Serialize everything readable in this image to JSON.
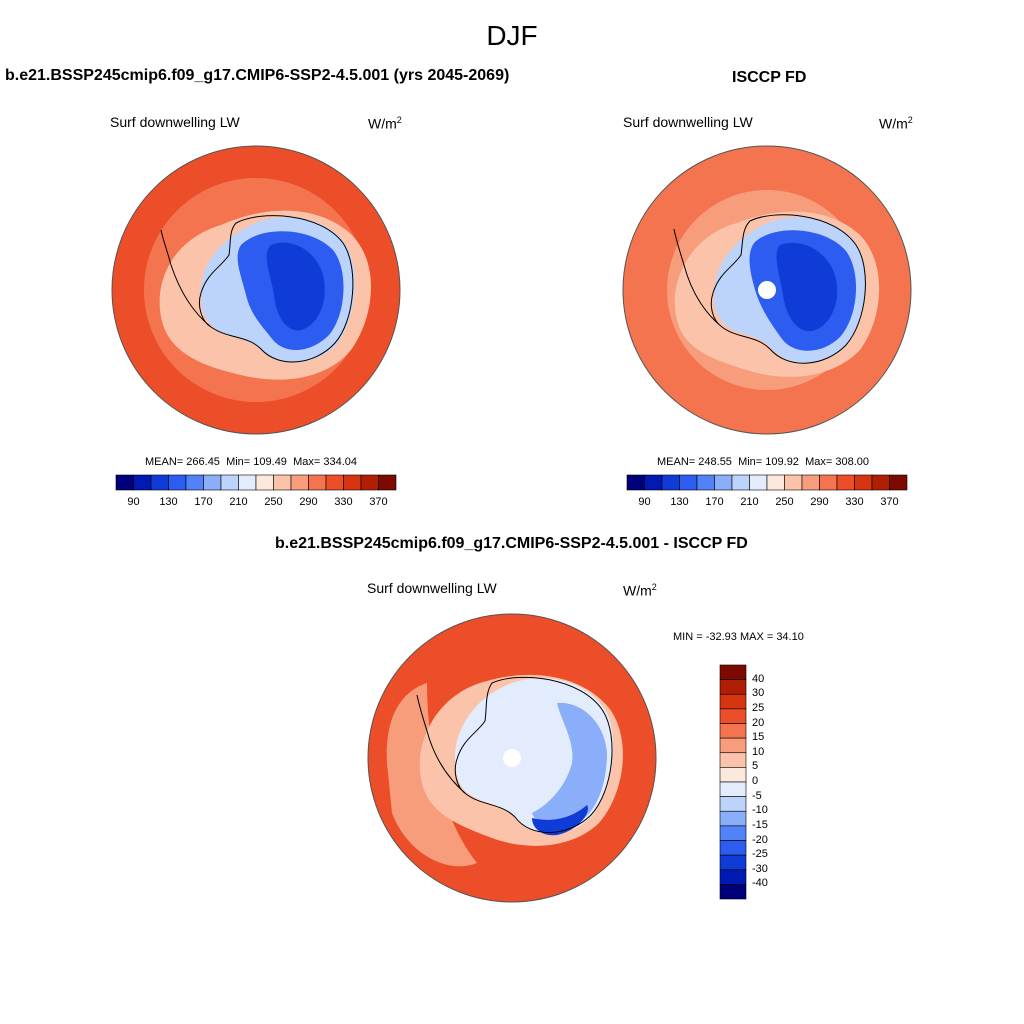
{
  "figure": {
    "season": "DJF",
    "variable": "Surf downwelling LW",
    "units_base": "W/m",
    "units_exp": "2"
  },
  "panels": {
    "model": {
      "title": "b.e21.BSSP245cmip6.f09_g17.CMIP6-SSP2-4.5.001 (yrs 2045-2069)",
      "mean_label": "MEAN=",
      "mean": "266.45",
      "min_label": "Min=",
      "min": "109.49",
      "max_label": "Max=",
      "max": "334.04"
    },
    "obs": {
      "title": "ISCCP FD",
      "mean_label": "MEAN=",
      "mean": "248.55",
      "min_label": "Min=",
      "min": "109.92",
      "max_label": "Max=",
      "max": "308.00"
    },
    "diff": {
      "title": "b.e21.BSSP245cmip6.f09_g17.CMIP6-SSP2-4.5.001 - ISCCP FD",
      "minmax": "MIN = -32.93 MAX =  34.10"
    }
  },
  "colorbars": {
    "absolute": {
      "labels": [
        "90",
        "130",
        "170",
        "210",
        "250",
        "290",
        "330",
        "370"
      ],
      "colors": [
        "#00007a",
        "#0019b3",
        "#0f3bd6",
        "#2c5cf0",
        "#5282f7",
        "#8aaefa",
        "#bcd3fb",
        "#e2ecfd",
        "#fde8dc",
        "#fbc4aa",
        "#f89d7c",
        "#f4744f",
        "#ec4e29",
        "#d6350f",
        "#b01f04",
        "#7d0a00"
      ]
    },
    "difference": {
      "labels": [
        "40",
        "30",
        "25",
        "20",
        "15",
        "10",
        "5",
        "0",
        "-5",
        "-10",
        "-15",
        "-20",
        "-25",
        "-30",
        "-40"
      ],
      "colors": [
        "#7d0a00",
        "#b01f04",
        "#d6350f",
        "#ec4e29",
        "#f4744f",
        "#f89d7c",
        "#fbc4aa",
        "#fde8dc",
        "#e2ecfd",
        "#bcd3fb",
        "#8aaefa",
        "#5282f7",
        "#2c5cf0",
        "#0f3bd6",
        "#0019b3",
        "#00007a"
      ]
    }
  },
  "map_fields": {
    "model": {
      "ocean_outer": "#ec4e29",
      "ocean_inner": "#f4744f",
      "coast_ring": "#fbc4aa",
      "ice_edge": "#bcd3fb",
      "ice_mid": "#2c5cf0",
      "ice_core": "#0f3bd6"
    },
    "obs": {
      "ocean_outer": "#f4744f",
      "ocean_inner": "#f89d7c",
      "coast_ring": "#fbc4aa",
      "ice_edge": "#bcd3fb",
      "ice_mid": "#2c5cf0",
      "ice_core": "#0f3bd6"
    },
    "diff": {
      "ocean_outer": "#ec4e29",
      "ocean_inner": "#f89d7c",
      "coast_ring": "#fbc4aa",
      "ice_edge": "#e2ecfd",
      "ice_mid": "#8aaefa",
      "ice_core": "#0f3bd6"
    }
  }
}
